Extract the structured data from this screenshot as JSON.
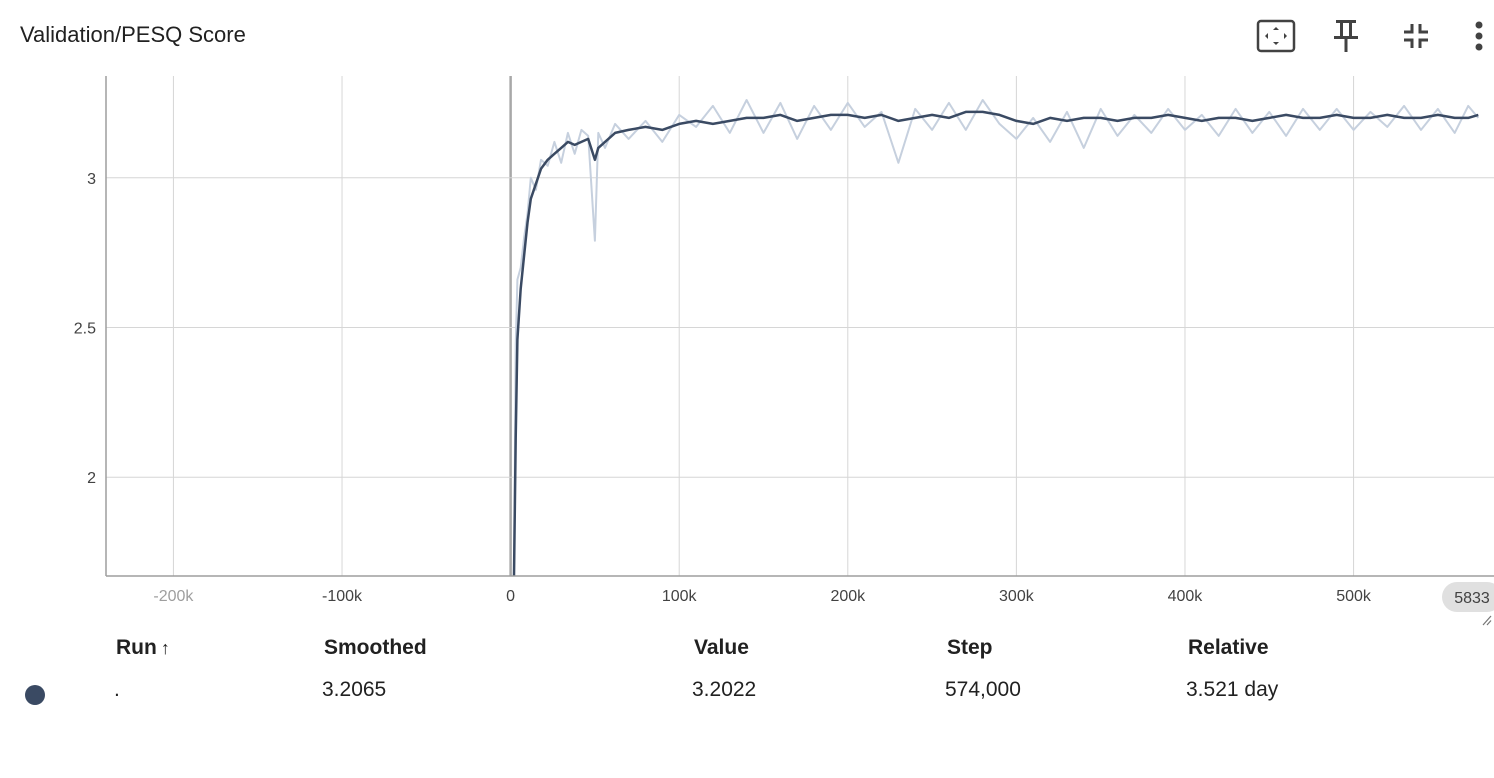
{
  "chart_title": "Validation/PESQ Score",
  "toolbar": {
    "fit_icon": "fit-domain-icon",
    "pin_icon": "pin-icon",
    "collapse_icon": "collapse-icon",
    "menu_icon": "more-vertical-icon"
  },
  "colors": {
    "smoothed_line": "#3a4a63",
    "raw_line": "#c6d0de",
    "grid": "#d6d6d6",
    "axis": "#9e9e9e",
    "zero_line": "#a8a8a8",
    "run_dot": "#3a4a63",
    "step_badge_bg": "#e0e0e0"
  },
  "chart_data": {
    "type": "line",
    "title": "Validation/PESQ Score",
    "xlabel": "",
    "ylabel": "",
    "xlim": [
      -240000,
      583300
    ],
    "ylim": [
      1.67,
      3.34
    ],
    "grid": true,
    "x_ticks": [
      -200000,
      -100000,
      0,
      100000,
      200000,
      300000,
      400000,
      500000
    ],
    "x_tick_labels": [
      "-200k",
      "-100k",
      "0",
      "100k",
      "200k",
      "300k",
      "400k",
      "500k"
    ],
    "y_ticks": [
      2,
      2.5,
      3
    ],
    "y_tick_labels": [
      "2",
      "2.5",
      "3"
    ],
    "hover_step_label": "5833",
    "series": [
      {
        "role": "smoothed",
        "x": [
          2000,
          3000,
          4000,
          6000,
          8000,
          10000,
          12000,
          15000,
          18000,
          22000,
          26000,
          30000,
          34000,
          38000,
          42000,
          46000,
          50000,
          52000,
          56000,
          62000,
          70000,
          80000,
          90000,
          100000,
          110000,
          120000,
          130000,
          140000,
          150000,
          160000,
          170000,
          180000,
          190000,
          200000,
          210000,
          220000,
          230000,
          240000,
          250000,
          260000,
          270000,
          280000,
          290000,
          300000,
          310000,
          320000,
          330000,
          340000,
          350000,
          360000,
          370000,
          380000,
          390000,
          400000,
          410000,
          420000,
          430000,
          440000,
          450000,
          460000,
          470000,
          480000,
          490000,
          500000,
          510000,
          520000,
          530000,
          540000,
          550000,
          560000,
          568000,
          574000
        ],
        "y": [
          1.67,
          2.13,
          2.46,
          2.63,
          2.74,
          2.85,
          2.93,
          2.98,
          3.03,
          3.06,
          3.08,
          3.1,
          3.12,
          3.11,
          3.12,
          3.13,
          3.06,
          3.1,
          3.12,
          3.15,
          3.16,
          3.17,
          3.16,
          3.18,
          3.19,
          3.18,
          3.19,
          3.2,
          3.2,
          3.21,
          3.19,
          3.2,
          3.21,
          3.21,
          3.2,
          3.21,
          3.19,
          3.2,
          3.21,
          3.2,
          3.22,
          3.22,
          3.21,
          3.19,
          3.18,
          3.2,
          3.19,
          3.2,
          3.2,
          3.19,
          3.2,
          3.2,
          3.21,
          3.2,
          3.19,
          3.2,
          3.2,
          3.19,
          3.2,
          3.21,
          3.2,
          3.2,
          3.21,
          3.2,
          3.2,
          3.21,
          3.2,
          3.2,
          3.21,
          3.2,
          3.2,
          3.21
        ]
      },
      {
        "role": "raw",
        "x": [
          2000,
          3000,
          4000,
          6000,
          8000,
          10000,
          12000,
          15000,
          18000,
          22000,
          26000,
          30000,
          34000,
          38000,
          42000,
          46000,
          50000,
          52000,
          56000,
          62000,
          70000,
          80000,
          90000,
          100000,
          110000,
          120000,
          130000,
          140000,
          150000,
          160000,
          170000,
          180000,
          190000,
          200000,
          210000,
          220000,
          230000,
          240000,
          250000,
          260000,
          270000,
          280000,
          290000,
          300000,
          310000,
          320000,
          330000,
          340000,
          350000,
          360000,
          370000,
          380000,
          390000,
          400000,
          410000,
          420000,
          430000,
          440000,
          450000,
          460000,
          470000,
          480000,
          490000,
          500000,
          510000,
          520000,
          530000,
          540000,
          550000,
          560000,
          568000,
          574000
        ],
        "y": [
          1.67,
          2.44,
          2.66,
          2.7,
          2.8,
          2.88,
          3.0,
          2.96,
          3.06,
          3.04,
          3.12,
          3.05,
          3.15,
          3.08,
          3.16,
          3.14,
          2.79,
          3.15,
          3.1,
          3.18,
          3.13,
          3.19,
          3.12,
          3.21,
          3.17,
          3.24,
          3.15,
          3.26,
          3.15,
          3.25,
          3.13,
          3.24,
          3.16,
          3.25,
          3.17,
          3.22,
          3.05,
          3.23,
          3.16,
          3.25,
          3.16,
          3.26,
          3.18,
          3.13,
          3.2,
          3.12,
          3.22,
          3.1,
          3.23,
          3.14,
          3.21,
          3.15,
          3.23,
          3.16,
          3.21,
          3.14,
          3.23,
          3.15,
          3.22,
          3.14,
          3.23,
          3.16,
          3.23,
          3.16,
          3.22,
          3.17,
          3.24,
          3.16,
          3.23,
          3.15,
          3.24,
          3.2
        ]
      }
    ]
  },
  "table": {
    "headers": {
      "run": "Run",
      "run_sort": "↑",
      "smoothed": "Smoothed",
      "value": "Value",
      "step": "Step",
      "relative": "Relative"
    },
    "rows": [
      {
        "run": ".",
        "smoothed": "3.2065",
        "value": "3.2022",
        "step": "574,000",
        "relative": "3.521 day"
      }
    ]
  }
}
